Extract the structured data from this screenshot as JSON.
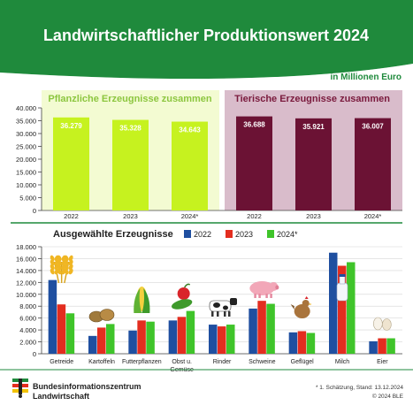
{
  "header": {
    "title": "Landwirtschaftlicher Produktionswert 2024",
    "unit": "in Millionen Euro"
  },
  "colors": {
    "header_green": "#1f8a3c",
    "plant_bar": "#c6f21f",
    "plant_bg": "#f3fbd2",
    "plant_title": "#8cc63f",
    "animal_bar": "#6b1234",
    "animal_bg": "#d9bccb",
    "animal_title": "#7a1a3d",
    "series_2022": "#1f4fa0",
    "series_2023": "#e32d1f",
    "series_2024": "#3fc42a"
  },
  "chart_data": [
    {
      "type": "bar",
      "title": "Pflanzliche Erzeugnisse zusammen",
      "categories": [
        "2022",
        "2023",
        "2024*"
      ],
      "values": [
        36279,
        35328,
        34643
      ],
      "value_labels": [
        "36.279",
        "35.328",
        "34.643"
      ],
      "ylim": [
        0,
        40000
      ],
      "yticks": [
        "0",
        "5.000",
        "10.000",
        "15.000",
        "20.000",
        "25.000",
        "30.000",
        "35.000",
        "40.000"
      ],
      "grid": false
    },
    {
      "type": "bar",
      "title": "Tierische Erzeugnisse zusammen",
      "categories": [
        "2022",
        "2023",
        "2024*"
      ],
      "values": [
        36688,
        35921,
        36007
      ],
      "value_labels": [
        "36.688",
        "35.921",
        "36.007"
      ],
      "ylim": [
        0,
        40000
      ],
      "grid": false
    },
    {
      "type": "bar",
      "title": "Ausgewählte Erzeugnisse",
      "categories": [
        "Getreide",
        "Kartoffeln",
        "Futterpflanzen",
        "Obst u. Gemüse",
        "Rinder",
        "Schweine",
        "Geflügel",
        "Milch",
        "Eier"
      ],
      "category_lines": [
        [
          "Getreide"
        ],
        [
          "Kartoffeln"
        ],
        [
          "Futterpflanzen"
        ],
        [
          "Obst u.",
          "Gemüse"
        ],
        [
          "Rinder"
        ],
        [
          "Schweine"
        ],
        [
          "Geflügel"
        ],
        [
          "Milch"
        ],
        [
          "Eier"
        ]
      ],
      "series": [
        {
          "name": "2022",
          "values": [
            12400,
            3000,
            3900,
            5600,
            4900,
            7600,
            3600,
            17000,
            2100
          ]
        },
        {
          "name": "2023",
          "values": [
            8300,
            4400,
            5600,
            6200,
            4600,
            8900,
            3800,
            14800,
            2600
          ]
        },
        {
          "name": "2024*",
          "values": [
            6800,
            5000,
            5400,
            7200,
            4900,
            8400,
            3500,
            15400,
            2600
          ]
        }
      ],
      "legend_labels": [
        "2022",
        "2023",
        "2024*"
      ],
      "legend_position": "top",
      "ylim": [
        0,
        18000
      ],
      "yticks": [
        "0",
        "2.000",
        "4.000",
        "6.000",
        "8.000",
        "10.000",
        "12.000",
        "14.000",
        "16.000",
        "18.000"
      ],
      "grid": true
    }
  ],
  "icons": [
    "wheat-icon",
    "potatoes-icon",
    "corn-icon",
    "apple-cucumber-icon",
    "cow-icon",
    "pig-icon",
    "chicken-icon",
    "milk-bottle-icon",
    "eggs-icon"
  ],
  "footer": {
    "org_line1": "Bundesinformationszentrum",
    "org_line2": "Landwirtschaft",
    "note": "* 1. Schätzung, Stand: 13.12.2024",
    "copyright": "© 2024 BLE"
  }
}
